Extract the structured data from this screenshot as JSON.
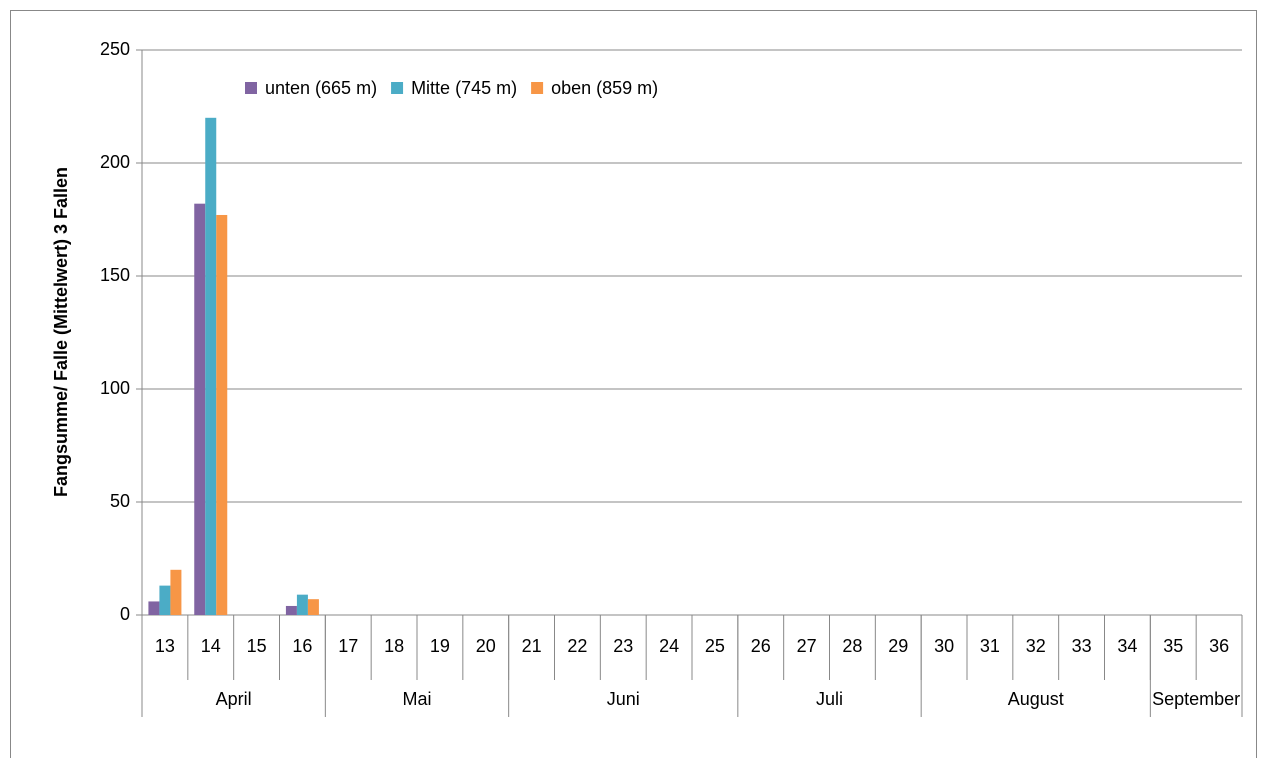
{
  "chart_data": {
    "type": "bar",
    "ylabel": "Fangsumme/ Falle (Mittelwert) 3 Fallen",
    "categories": [
      "13",
      "14",
      "15",
      "16",
      "17",
      "18",
      "19",
      "20",
      "21",
      "22",
      "23",
      "24",
      "25",
      "26",
      "27",
      "28",
      "29",
      "30",
      "31",
      "32",
      "33",
      "34",
      "35",
      "36"
    ],
    "groups": [
      {
        "label": "April",
        "span": 4
      },
      {
        "label": "Mai",
        "span": 4
      },
      {
        "label": "Juni",
        "span": 5
      },
      {
        "label": "Juli",
        "span": 4
      },
      {
        "label": "August",
        "span": 5
      },
      {
        "label": "September",
        "span": 2
      }
    ],
    "series": [
      {
        "name": "unten (665 m)",
        "color": "#8064a2",
        "values": [
          6,
          182,
          0,
          4,
          0,
          0,
          0,
          0,
          0,
          0,
          0,
          0,
          0,
          0,
          0,
          0,
          0,
          0,
          0,
          0,
          0,
          0,
          0,
          0
        ]
      },
      {
        "name": "Mitte (745 m)",
        "color": "#4bacc6",
        "values": [
          13,
          220,
          0,
          9,
          0,
          0,
          0,
          0,
          0,
          0,
          0,
          0,
          0,
          0,
          0,
          0,
          0,
          0,
          0,
          0,
          0,
          0,
          0,
          0
        ]
      },
      {
        "name": "oben (859 m)",
        "color": "#f79646",
        "values": [
          20,
          177,
          0,
          7,
          0,
          0,
          0,
          0,
          0,
          0,
          0,
          0,
          0,
          0,
          0,
          0,
          0,
          0,
          0,
          0,
          0,
          0,
          0,
          0
        ]
      }
    ],
    "ylim": [
      0,
      250
    ],
    "yticks": [
      0,
      50,
      100,
      150,
      200,
      250
    ],
    "grid": true,
    "legend": "top"
  }
}
